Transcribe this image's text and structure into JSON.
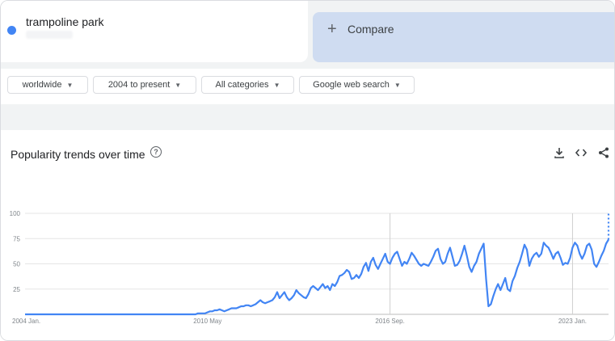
{
  "search": {
    "term": "trampoline park",
    "compare_label": "Compare",
    "plus": "+"
  },
  "filters": {
    "region": "worldwide",
    "time": "2004 to present",
    "category": "All categories",
    "property": "Google web search"
  },
  "chart": {
    "title": "Popularity trends over time",
    "help": "?"
  },
  "toolbar": {
    "download": "download-icon",
    "embed": "embed-icon",
    "share": "share-icon"
  },
  "colors": {
    "series": "#4285f4",
    "accent_bg": "#cfdcf1",
    "grid": "#e6e6e6"
  },
  "chart_data": {
    "type": "line",
    "title": "Popularity trends over time",
    "xlabel": "",
    "ylabel": "",
    "ylim": [
      0,
      100
    ],
    "yticks": [
      "100",
      "75",
      "50",
      "25"
    ],
    "x_tick_labels": [
      "2004 Jan.",
      "2010 May",
      "2016 Sep.",
      "2023 Jan."
    ],
    "grid": true,
    "series": [
      {
        "name": "trampoline park",
        "x_start": "2004-01",
        "interval": "month",
        "values": [
          0,
          0,
          0,
          0,
          0,
          0,
          0,
          0,
          0,
          0,
          0,
          0,
          0,
          0,
          0,
          0,
          0,
          0,
          0,
          0,
          0,
          0,
          0,
          0,
          0,
          0,
          0,
          0,
          0,
          0,
          0,
          0,
          0,
          0,
          0,
          0,
          0,
          0,
          0,
          0,
          0,
          0,
          0,
          0,
          0,
          0,
          0,
          0,
          0,
          0,
          0,
          0,
          0,
          0,
          0,
          0,
          0,
          0,
          0,
          0,
          0,
          0,
          0,
          0,
          0,
          0,
          0,
          0,
          0,
          0,
          0,
          0,
          1,
          1,
          1,
          1,
          2,
          3,
          3,
          4,
          4,
          5,
          4,
          3,
          4,
          5,
          6,
          6,
          6,
          7,
          8,
          8,
          9,
          9,
          8,
          9,
          10,
          12,
          14,
          12,
          11,
          12,
          13,
          14,
          17,
          22,
          16,
          19,
          22,
          17,
          14,
          16,
          19,
          24,
          21,
          19,
          17,
          16,
          20,
          26,
          28,
          26,
          24,
          27,
          30,
          26,
          28,
          24,
          30,
          28,
          32,
          38,
          39,
          41,
          44,
          42,
          35,
          36,
          39,
          36,
          40,
          47,
          51,
          43,
          52,
          56,
          49,
          45,
          50,
          55,
          60,
          52,
          50,
          56,
          60,
          62,
          55,
          48,
          52,
          50,
          55,
          61,
          58,
          54,
          50,
          48,
          50,
          49,
          48,
          52,
          57,
          63,
          65,
          55,
          50,
          52,
          60,
          66,
          57,
          48,
          49,
          53,
          60,
          68,
          58,
          47,
          42,
          48,
          52,
          60,
          65,
          70,
          35,
          8,
          10,
          18,
          25,
          30,
          24,
          30,
          36,
          25,
          23,
          33,
          38,
          46,
          52,
          60,
          69,
          64,
          48,
          55,
          59,
          61,
          57,
          60,
          71,
          68,
          66,
          61,
          55,
          60,
          62,
          56,
          49,
          51,
          50,
          56,
          66,
          71,
          68,
          60,
          55,
          60,
          68,
          70,
          64,
          50,
          47,
          52,
          58,
          63,
          70,
          74
        ]
      }
    ],
    "partial_last_point": 100
  }
}
